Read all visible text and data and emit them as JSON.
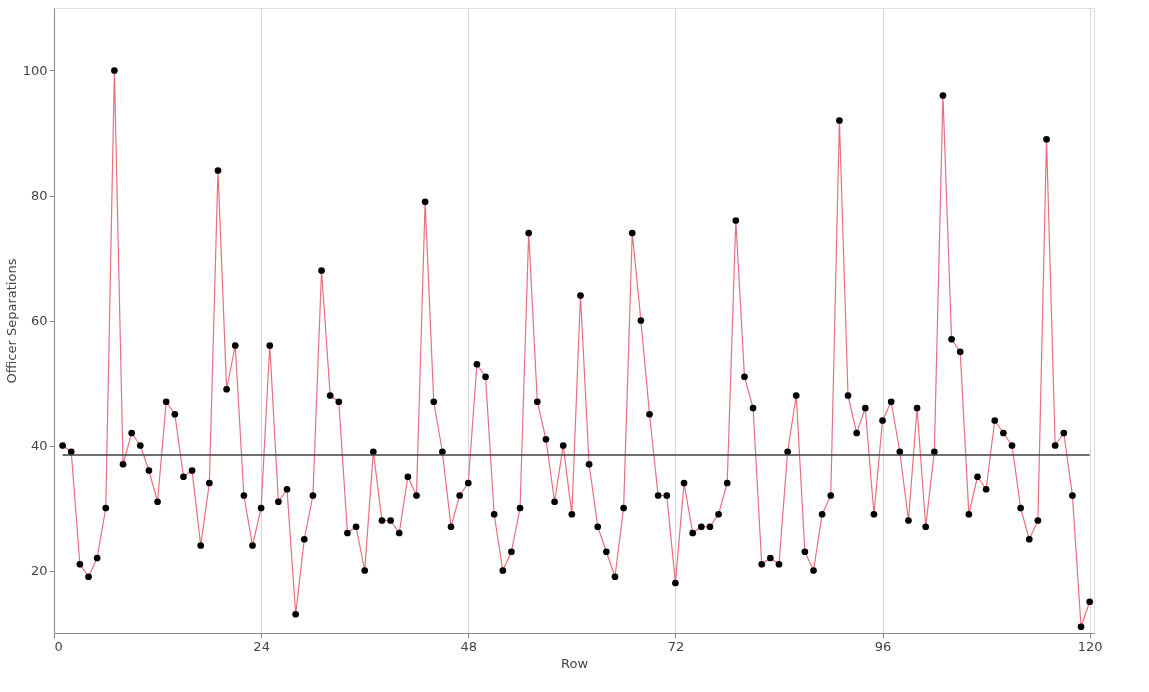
{
  "chart_data": {
    "type": "line",
    "xlabel": "Row",
    "ylabel": "Officer Separations",
    "x": [
      1,
      2,
      3,
      4,
      5,
      6,
      7,
      8,
      9,
      10,
      11,
      12,
      13,
      14,
      15,
      16,
      17,
      18,
      19,
      20,
      21,
      22,
      23,
      24,
      25,
      26,
      27,
      28,
      29,
      30,
      31,
      32,
      33,
      34,
      35,
      36,
      37,
      38,
      39,
      40,
      41,
      42,
      43,
      44,
      45,
      46,
      47,
      48,
      49,
      50,
      51,
      52,
      53,
      54,
      55,
      56,
      57,
      58,
      59,
      60,
      61,
      62,
      63,
      64,
      65,
      66,
      67,
      68,
      69,
      70,
      71,
      72,
      73,
      74,
      75,
      76,
      77,
      78,
      79,
      80,
      81,
      82,
      83,
      84,
      85,
      86,
      87,
      88,
      89,
      90,
      91,
      92,
      93,
      94,
      95,
      96,
      97,
      98,
      99,
      100,
      101,
      102,
      103,
      104,
      105,
      106,
      107,
      108,
      109,
      110,
      111,
      112,
      113,
      114,
      115,
      116,
      117,
      118,
      119,
      120
    ],
    "series": [
      {
        "color": "#e8707e",
        "values": [
          40,
          39,
          21,
          19,
          22,
          30,
          100,
          37,
          42,
          40,
          36,
          31,
          47,
          45,
          35,
          36,
          24,
          34,
          84,
          49,
          56,
          32,
          24,
          30,
          56,
          31,
          33,
          13,
          25,
          32,
          68,
          48,
          47,
          26,
          27,
          20,
          39,
          28,
          28,
          26,
          35,
          32,
          79,
          47,
          39,
          27,
          32,
          34,
          53,
          51,
          29,
          20,
          23,
          30,
          74,
          47,
          41,
          31,
          40,
          29,
          64,
          37,
          27,
          23,
          19,
          30,
          74,
          60,
          45,
          32,
          32,
          18,
          34,
          26,
          27,
          27,
          29,
          34,
          76,
          51,
          46,
          21,
          22,
          21,
          39,
          48,
          23,
          20,
          29,
          32,
          92,
          48,
          42,
          46,
          29,
          44,
          47,
          39,
          28,
          46,
          27,
          39,
          96,
          57,
          55,
          29,
          35,
          33,
          44,
          42,
          40,
          30,
          25,
          28,
          89,
          40,
          42,
          32,
          11,
          15
        ]
      }
    ],
    "xlim": [
      0,
      120.5
    ],
    "ylim": [
      10,
      110
    ],
    "xticks": [
      0,
      24,
      48,
      72,
      96,
      120
    ],
    "yticks": [
      20,
      40,
      60,
      80,
      100
    ],
    "ref_lines": [
      {
        "axis": "y",
        "value": 38.5,
        "color": "#404040"
      }
    ],
    "grid": "x",
    "marker": "circle",
    "line_style": "solid"
  }
}
